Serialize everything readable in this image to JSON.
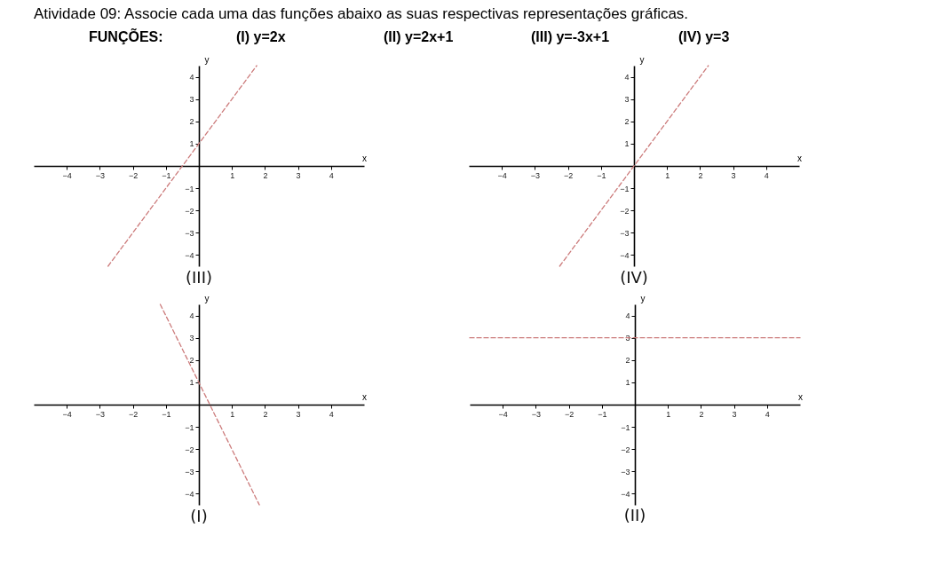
{
  "chart_data": [
    {
      "type": "other",
      "title": "Atividade 09: Associe cada uma das funções abaixo as suas respectivas representações gráficas.",
      "annotations": [
        "FUNÇÕES:",
        "(I) y=2x",
        "(II) y=2x+1",
        "(III) y=-3x+1",
        "(IV) y=3"
      ]
    },
    {
      "type": "line",
      "title": "(III)",
      "xlabel": "x",
      "ylabel": "y",
      "xlim": [
        -5,
        5
      ],
      "ylim": [
        -4.5,
        4.5
      ],
      "xticks": [
        -4,
        -3,
        -2,
        -1,
        1,
        2,
        3,
        4
      ],
      "yticks": [
        -4,
        -3,
        -2,
        -1,
        1,
        2,
        3,
        4
      ],
      "grid": false,
      "line_style": "dashed",
      "series": [
        {
          "color": "#cc7b7b",
          "x": [
            -2.75,
            1.75
          ],
          "values": [
            -4.5,
            4.5
          ]
        }
      ]
    },
    {
      "type": "line",
      "title": "(IV)",
      "xlabel": "x",
      "ylabel": "y",
      "xlim": [
        -5,
        5
      ],
      "ylim": [
        -4.5,
        4.5
      ],
      "xticks": [
        -4,
        -3,
        -2,
        -1,
        1,
        2,
        3,
        4
      ],
      "yticks": [
        -4,
        -3,
        -2,
        -1,
        1,
        2,
        3,
        4
      ],
      "grid": false,
      "line_style": "dashed",
      "series": [
        {
          "color": "#cc7b7b",
          "x": [
            -2.25,
            2.25
          ],
          "values": [
            -4.5,
            4.5
          ]
        }
      ]
    },
    {
      "type": "line",
      "title": "(I)",
      "xlabel": "x",
      "ylabel": "y",
      "xlim": [
        -5,
        5
      ],
      "ylim": [
        -4.5,
        4.5
      ],
      "xticks": [
        -4,
        -3,
        -2,
        -1,
        1,
        2,
        3,
        4
      ],
      "yticks": [
        -4,
        -3,
        -2,
        -1,
        1,
        2,
        3,
        4
      ],
      "grid": false,
      "line_style": "dashed",
      "series": [
        {
          "color": "#cc7b7b",
          "x": [
            -1.17,
            1.83
          ],
          "values": [
            4.5,
            -4.5
          ]
        }
      ]
    },
    {
      "type": "line",
      "title": "(II)",
      "xlabel": "x",
      "ylabel": "y",
      "xlim": [
        -5,
        5
      ],
      "ylim": [
        -4.5,
        4.5
      ],
      "xticks": [
        -4,
        -3,
        -2,
        -1,
        1,
        2,
        3,
        4
      ],
      "yticks": [
        -4,
        -3,
        -2,
        -1,
        1,
        2,
        3,
        4
      ],
      "grid": false,
      "line_style": "dashed",
      "series": [
        {
          "color": "#cc7b7b",
          "x": [
            -5,
            5
          ],
          "values": [
            3,
            3
          ]
        }
      ]
    }
  ]
}
